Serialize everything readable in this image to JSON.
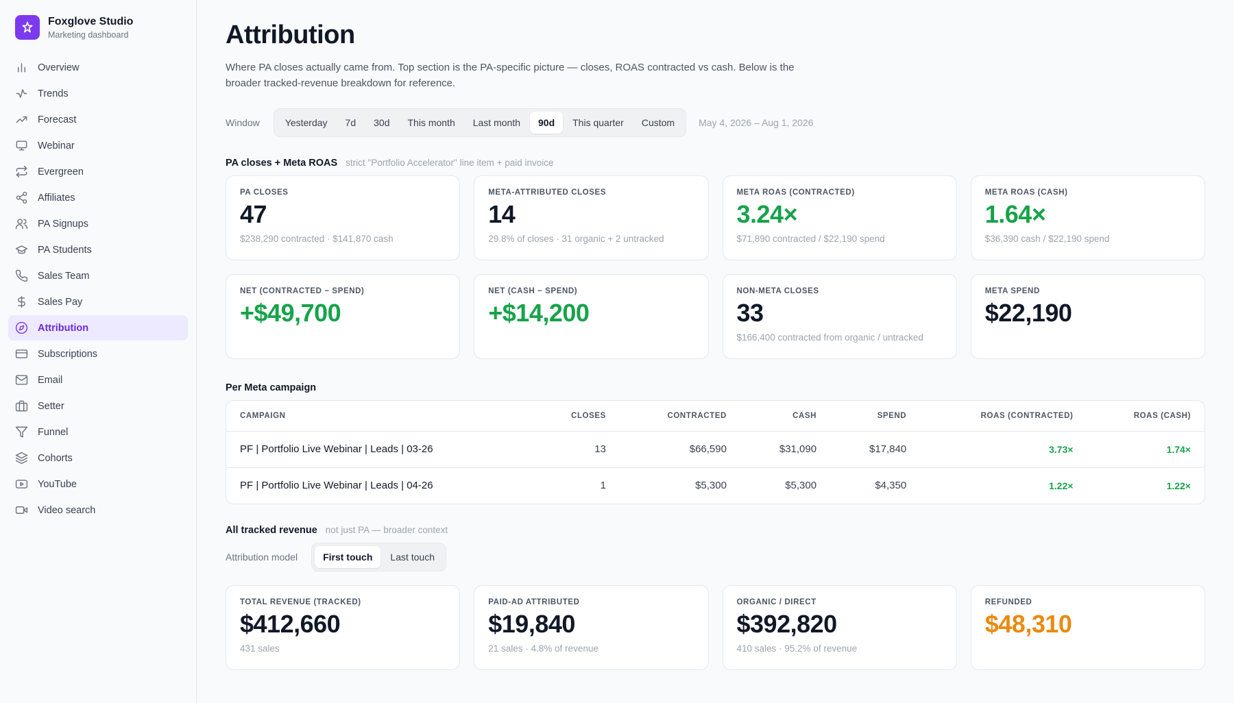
{
  "brand": {
    "name": "Foxglove Studio",
    "subtitle": "Marketing dashboard"
  },
  "sidebar": {
    "items": [
      {
        "label": "Overview",
        "icon": "bar-chart-icon"
      },
      {
        "label": "Trends",
        "icon": "activity-icon"
      },
      {
        "label": "Forecast",
        "icon": "trending-up-icon"
      },
      {
        "label": "Webinar",
        "icon": "monitor-icon"
      },
      {
        "label": "Evergreen",
        "icon": "repeat-icon"
      },
      {
        "label": "Affiliates",
        "icon": "share-icon"
      },
      {
        "label": "PA Signups",
        "icon": "users-icon"
      },
      {
        "label": "PA Students",
        "icon": "graduation-cap-icon"
      },
      {
        "label": "Sales Team",
        "icon": "phone-icon"
      },
      {
        "label": "Sales Pay",
        "icon": "dollar-icon"
      },
      {
        "label": "Attribution",
        "icon": "compass-icon",
        "active": true
      },
      {
        "label": "Subscriptions",
        "icon": "credit-card-icon"
      },
      {
        "label": "Email",
        "icon": "mail-icon"
      },
      {
        "label": "Setter",
        "icon": "briefcase-icon"
      },
      {
        "label": "Funnel",
        "icon": "filter-icon"
      },
      {
        "label": "Cohorts",
        "icon": "layers-icon"
      },
      {
        "label": "YouTube",
        "icon": "youtube-icon"
      },
      {
        "label": "Video search",
        "icon": "video-icon"
      }
    ]
  },
  "page": {
    "title": "Attribution",
    "description": "Where PA closes actually came from. Top section is the PA-specific picture — closes, ROAS contracted vs cash. Below is the broader tracked-revenue breakdown for reference."
  },
  "window": {
    "label": "Window",
    "options": [
      "Yesterday",
      "7d",
      "30d",
      "This month",
      "Last month",
      "90d",
      "This quarter",
      "Custom"
    ],
    "selected": "90d",
    "date_range": "May 4, 2026 – Aug 1, 2026"
  },
  "pa_section": {
    "title": "PA closes + Meta ROAS",
    "note": "strict \"Portfolio Accelerator\" line item + paid invoice",
    "cards": [
      {
        "label": "PA closes",
        "value": "47",
        "sub": "$238,290 contracted · $141,870 cash",
        "tone": "default"
      },
      {
        "label": "Meta-attributed closes",
        "value": "14",
        "sub": "29.8% of closes · 31 organic + 2 untracked",
        "tone": "default"
      },
      {
        "label": "Meta ROAS (contracted)",
        "value": "3.24×",
        "sub": "$71,890 contracted / $22,190 spend",
        "tone": "green"
      },
      {
        "label": "Meta ROAS (cash)",
        "value": "1.64×",
        "sub": "$36,390 cash / $22,190 spend",
        "tone": "green"
      },
      {
        "label": "Net (contracted − spend)",
        "value": "+$49,700",
        "sub": "",
        "tone": "green"
      },
      {
        "label": "Net (cash − spend)",
        "value": "+$14,200",
        "sub": "",
        "tone": "green"
      },
      {
        "label": "Non-Meta closes",
        "value": "33",
        "sub": "$166,400 contracted from organic / untracked",
        "tone": "default"
      },
      {
        "label": "Meta spend",
        "value": "$22,190",
        "sub": "",
        "tone": "default"
      }
    ]
  },
  "campaigns": {
    "title": "Per Meta campaign",
    "columns": [
      "Campaign",
      "Closes",
      "Contracted",
      "Cash",
      "Spend",
      "ROAS (contracted)",
      "ROAS (cash)"
    ],
    "rows": [
      [
        "PF | Portfolio Live Webinar | Leads | 03-26",
        "13",
        "$66,590",
        "$31,090",
        "$17,840",
        "3.73×",
        "1.74×"
      ],
      [
        "PF | Portfolio Live Webinar | Leads | 04-26",
        "1",
        "$5,300",
        "$5,300",
        "$4,350",
        "1.22×",
        "1.22×"
      ]
    ]
  },
  "tracked": {
    "title": "All tracked revenue",
    "note": "not just PA — broader context",
    "model_label": "Attribution model",
    "models": [
      "First touch",
      "Last touch"
    ],
    "selected_model": "First touch",
    "cards": [
      {
        "label": "Total revenue (tracked)",
        "value": "$412,660",
        "sub": "431 sales",
        "tone": "default"
      },
      {
        "label": "Paid-ad attributed",
        "value": "$19,840",
        "sub": "21 sales · 4.8% of revenue",
        "tone": "default"
      },
      {
        "label": "Organic / direct",
        "value": "$392,820",
        "sub": "410 sales · 95.2% of revenue",
        "tone": "default"
      },
      {
        "label": "Refunded",
        "value": "$48,310",
        "sub": "",
        "tone": "orange"
      }
    ]
  },
  "colors": {
    "accent": "#7c3aed",
    "positive": "#16a34a",
    "warning": "#ea8a10"
  }
}
